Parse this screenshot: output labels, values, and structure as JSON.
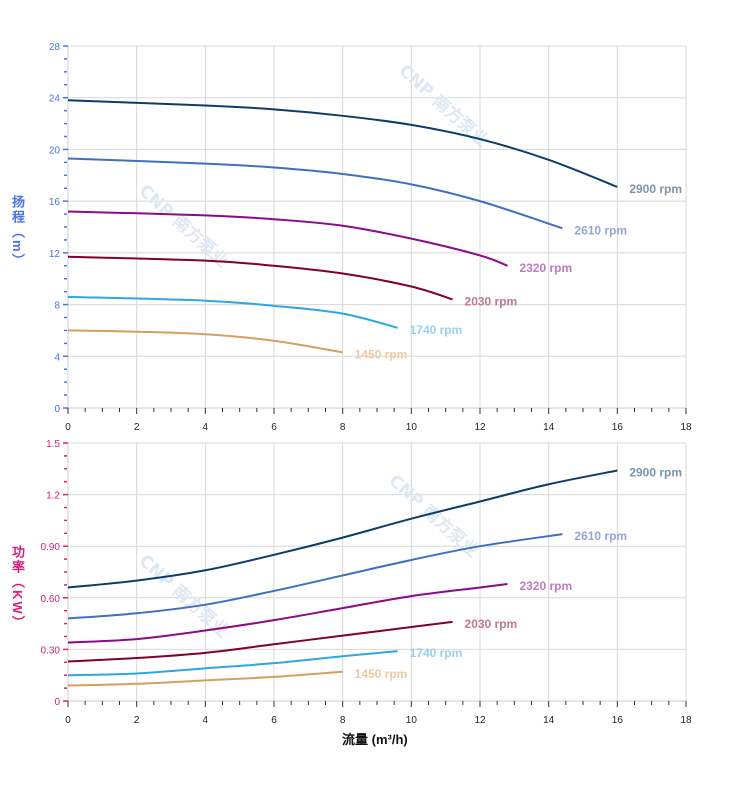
{
  "chart_data": [
    {
      "type": "line",
      "ylabel": "扬程（m）",
      "xlim": [
        0,
        18
      ],
      "ylim": [
        0,
        28
      ],
      "xticks": [
        0,
        2,
        4,
        6,
        8,
        10,
        12,
        14,
        16,
        18
      ],
      "yticks": [
        0,
        4,
        8,
        12,
        16,
        20,
        24,
        28
      ],
      "ytick_labels": [
        "0",
        "4",
        "8",
        "12",
        "16",
        "20",
        "24",
        "28"
      ],
      "grid": true,
      "axis_color": "#4a72e8",
      "series": [
        {
          "name": "2900 rpm",
          "color": "#0b3d6b",
          "label_color": "#7a94ad",
          "x": [
            0,
            4,
            6,
            8,
            10,
            12,
            14,
            16
          ],
          "y": [
            23.8,
            23.4,
            23.1,
            22.6,
            21.9,
            20.8,
            19.2,
            17.1
          ]
        },
        {
          "name": "2610 rpm",
          "color": "#3f6fbf",
          "label_color": "#93a6d6",
          "x": [
            0,
            4,
            6,
            8,
            10,
            12,
            14.4
          ],
          "y": [
            19.3,
            18.9,
            18.6,
            18.1,
            17.3,
            16.0,
            13.9
          ]
        },
        {
          "name": "2320 rpm",
          "color": "#8a0a8a",
          "label_color": "#c07ac0",
          "x": [
            0,
            4,
            6,
            8,
            10,
            12,
            12.8
          ],
          "y": [
            15.2,
            14.9,
            14.6,
            14.1,
            13.1,
            11.8,
            11.0
          ]
        },
        {
          "name": "2030 rpm",
          "color": "#800030",
          "label_color": "#c07a8e",
          "x": [
            0,
            4,
            6,
            8,
            10,
            11.2
          ],
          "y": [
            11.7,
            11.4,
            11.0,
            10.4,
            9.4,
            8.4
          ]
        },
        {
          "name": "1740 rpm",
          "color": "#2ea6e0",
          "label_color": "#98d0ee",
          "x": [
            0,
            4,
            6,
            8,
            9.6
          ],
          "y": [
            8.6,
            8.3,
            7.9,
            7.3,
            6.2
          ]
        },
        {
          "name": "1450 rpm",
          "color": "#d4a060",
          "label_color": "#ecc9a4",
          "x": [
            0,
            2,
            4,
            6,
            8
          ],
          "y": [
            6.0,
            5.9,
            5.7,
            5.2,
            4.3
          ]
        }
      ]
    },
    {
      "type": "line",
      "ylabel": "功率（KW）",
      "xlabel": "流量 (m³/h)",
      "xlim": [
        0,
        18
      ],
      "ylim": [
        0,
        1.5
      ],
      "xticks": [
        0,
        2,
        4,
        6,
        8,
        10,
        12,
        14,
        16,
        18
      ],
      "yticks": [
        0,
        0.3,
        0.6,
        0.9,
        1.2,
        1.5
      ],
      "ytick_labels": [
        "0",
        "0.30",
        "0.60",
        "0.90",
        "1.2",
        "1.5"
      ],
      "grid": true,
      "axis_color": "#d6207a",
      "series": [
        {
          "name": "2900 rpm",
          "color": "#0b3d6b",
          "label_color": "#7a94ad",
          "x": [
            0,
            2,
            4,
            6,
            8,
            10,
            12,
            14,
            16
          ],
          "y": [
            0.66,
            0.7,
            0.76,
            0.85,
            0.95,
            1.06,
            1.16,
            1.26,
            1.34
          ]
        },
        {
          "name": "2610 rpm",
          "color": "#3f6fbf",
          "label_color": "#93a6d6",
          "x": [
            0,
            2,
            4,
            6,
            8,
            10,
            12,
            14.4
          ],
          "y": [
            0.48,
            0.51,
            0.56,
            0.64,
            0.73,
            0.82,
            0.9,
            0.97
          ]
        },
        {
          "name": "2320 rpm",
          "color": "#8a0a8a",
          "label_color": "#c07ac0",
          "x": [
            0,
            2,
            4,
            6,
            8,
            10,
            12,
            12.8
          ],
          "y": [
            0.34,
            0.36,
            0.41,
            0.47,
            0.54,
            0.61,
            0.66,
            0.68
          ]
        },
        {
          "name": "2030 rpm",
          "color": "#800030",
          "label_color": "#c07a8e",
          "x": [
            0,
            2,
            4,
            6,
            8,
            10,
            11.2
          ],
          "y": [
            0.23,
            0.25,
            0.28,
            0.33,
            0.38,
            0.43,
            0.46
          ]
        },
        {
          "name": "1740 rpm",
          "color": "#2ea6e0",
          "label_color": "#98d0ee",
          "x": [
            0,
            2,
            4,
            6,
            8,
            9.6
          ],
          "y": [
            0.15,
            0.16,
            0.19,
            0.22,
            0.26,
            0.29
          ]
        },
        {
          "name": "1450 rpm",
          "color": "#d4a060",
          "label_color": "#ecc9a4",
          "x": [
            0,
            2,
            4,
            6,
            8
          ],
          "y": [
            0.09,
            0.1,
            0.12,
            0.14,
            0.17
          ]
        }
      ]
    }
  ],
  "watermark": "CNP 南方泵业"
}
